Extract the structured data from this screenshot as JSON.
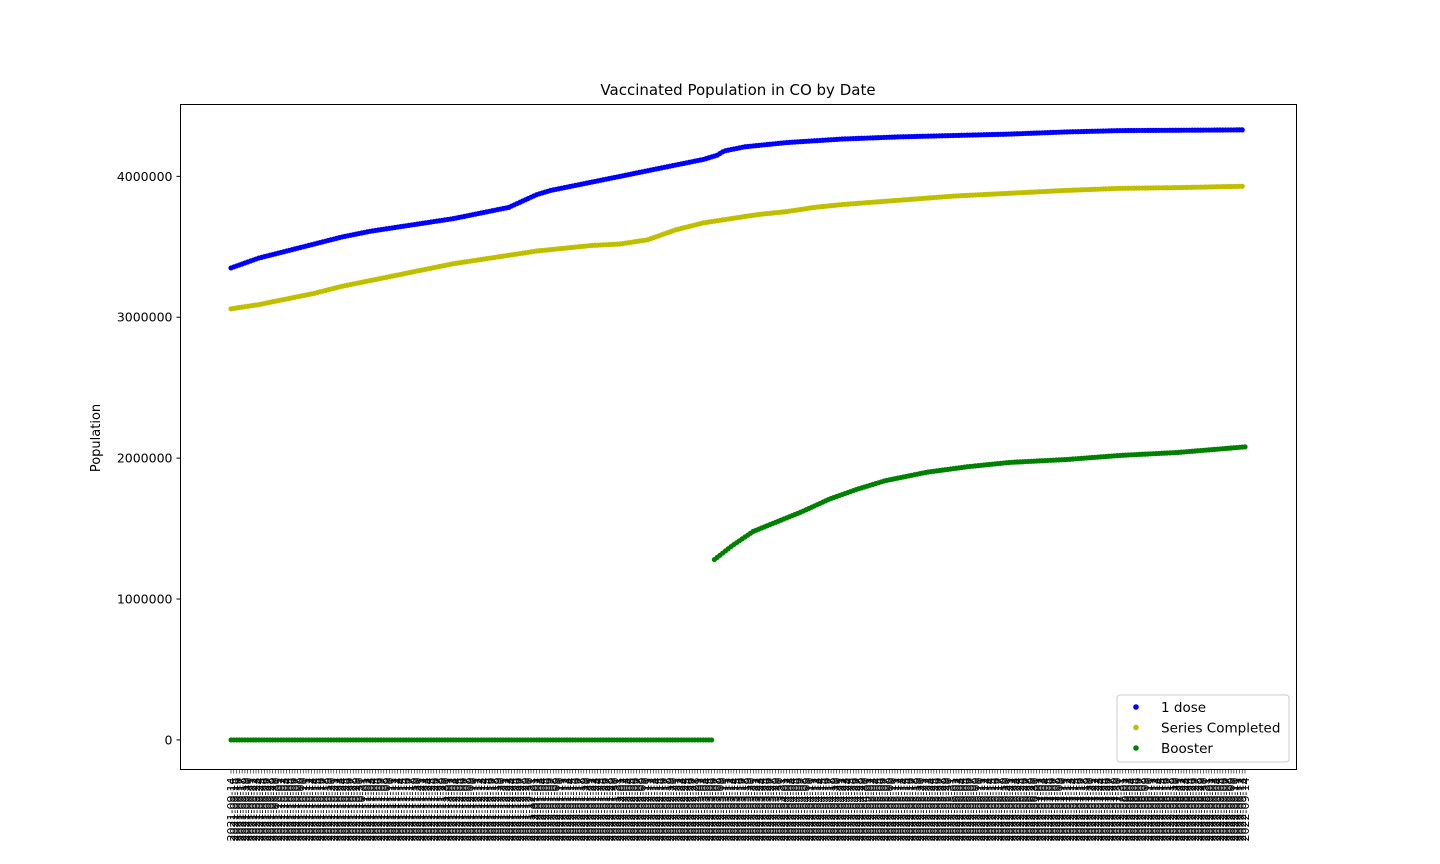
{
  "chart_data": {
    "type": "scatter",
    "title": "Vaccinated Population in CO by Date",
    "xlabel": "",
    "ylabel": "Population",
    "ylim": [
      -210000,
      4510000
    ],
    "y_ticks": [
      0,
      1000000,
      2000000,
      3000000,
      4000000
    ],
    "y_tick_labels": [
      "0",
      "1000000",
      "2000000",
      "3000000",
      "4000000"
    ],
    "x_axis": {
      "kind": "date-categories",
      "count": 366,
      "first": "2021-09-14",
      "last": "2022-09-14",
      "tick_every": 1,
      "note_rotated_labels": "every date is a tick, labels rotated 90 degrees and overlapping"
    },
    "legend_position": "lower-right",
    "grid": false,
    "series": [
      {
        "name": "1 dose",
        "color": "#0000ff",
        "anchors": [
          [
            0,
            3350000
          ],
          [
            20,
            3420000
          ],
          [
            40,
            3470000
          ],
          [
            60,
            3520000
          ],
          [
            80,
            3570000
          ],
          [
            100,
            3610000
          ],
          [
            120,
            3640000
          ],
          [
            140,
            3670000
          ],
          [
            160,
            3700000
          ],
          [
            180,
            3740000
          ],
          [
            200,
            3780000
          ],
          [
            220,
            3870000
          ],
          [
            230,
            3900000
          ],
          [
            240,
            3920000
          ],
          [
            260,
            3960000
          ],
          [
            280,
            4000000
          ],
          [
            300,
            4040000
          ],
          [
            320,
            4080000
          ],
          [
            340,
            4120000
          ],
          [
            350,
            4150000
          ],
          [
            355,
            4180000
          ],
          [
            370,
            4210000
          ],
          [
            400,
            4240000
          ],
          [
            440,
            4265000
          ],
          [
            480,
            4280000
          ],
          [
            520,
            4290000
          ],
          [
            560,
            4300000
          ],
          [
            600,
            4315000
          ],
          [
            640,
            4325000
          ],
          [
            729,
            4330000
          ]
        ]
      },
      {
        "name": "Series Completed",
        "color": "#bfbf00",
        "anchors": [
          [
            0,
            3060000
          ],
          [
            20,
            3090000
          ],
          [
            40,
            3130000
          ],
          [
            60,
            3170000
          ],
          [
            80,
            3220000
          ],
          [
            100,
            3260000
          ],
          [
            120,
            3300000
          ],
          [
            140,
            3340000
          ],
          [
            160,
            3380000
          ],
          [
            180,
            3410000
          ],
          [
            200,
            3440000
          ],
          [
            220,
            3470000
          ],
          [
            240,
            3490000
          ],
          [
            260,
            3510000
          ],
          [
            280,
            3520000
          ],
          [
            300,
            3550000
          ],
          [
            320,
            3620000
          ],
          [
            340,
            3670000
          ],
          [
            360,
            3700000
          ],
          [
            380,
            3730000
          ],
          [
            400,
            3750000
          ],
          [
            420,
            3780000
          ],
          [
            440,
            3800000
          ],
          [
            480,
            3830000
          ],
          [
            520,
            3860000
          ],
          [
            560,
            3880000
          ],
          [
            600,
            3900000
          ],
          [
            640,
            3915000
          ],
          [
            680,
            3920000
          ],
          [
            729,
            3930000
          ]
        ]
      },
      {
        "name": "Booster",
        "color": "#008000",
        "segments": [
          {
            "from": 0,
            "to": 346,
            "anchors": [
              [
                0,
                0
              ],
              [
                346,
                0
              ]
            ]
          },
          {
            "from": 347,
            "to": 729,
            "anchors": [
              [
                347,
                1280000
              ],
              [
                360,
                1380000
              ],
              [
                375,
                1480000
              ],
              [
                390,
                1540000
              ],
              [
                410,
                1620000
              ],
              [
                430,
                1710000
              ],
              [
                450,
                1780000
              ],
              [
                470,
                1840000
              ],
              [
                500,
                1900000
              ],
              [
                530,
                1940000
              ],
              [
                560,
                1970000
              ],
              [
                600,
                1990000
              ],
              [
                640,
                2020000
              ],
              [
                680,
                2040000
              ],
              [
                729,
                2080000
              ]
            ]
          }
        ]
      }
    ]
  }
}
